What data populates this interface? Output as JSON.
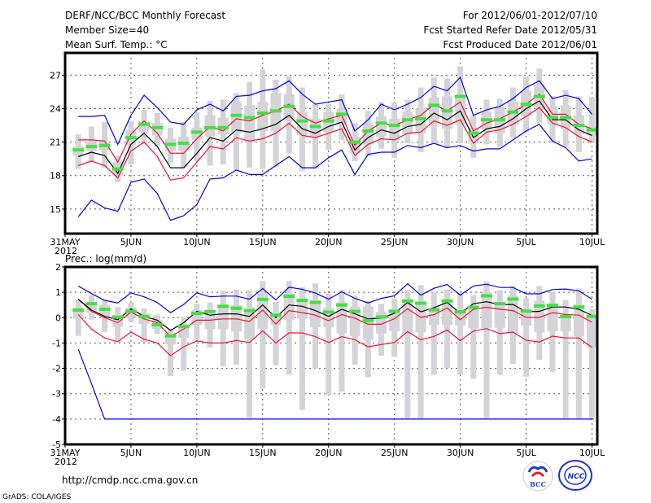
{
  "header": {
    "title": "DERF/NCC/BCC Monthly Forecast",
    "member_size": "Member Size=40",
    "variable": "Mean Surf. Temp.: °C",
    "period": "For 2012/06/01-2012/07/10",
    "started": "Fcst Started Refer Date 2012/05/31",
    "produced": "Fcst Produced Date 2012/06/01"
  },
  "footer": {
    "url": "http://cmdp.ncc.cma.gov.cn",
    "credit": "GrADS: COLA/IGES",
    "logo_bcc": "BCC",
    "logo_ncc": "NCC"
  },
  "colors": {
    "green": "#44e044",
    "black": "#000000",
    "red": "#ee1133",
    "blue": "#0000ee",
    "grey": "#d4d4d8"
  },
  "chart_data": [
    {
      "type": "line",
      "title": "Mean Surf. Temp.: °C",
      "ylim": [
        12.8,
        29
      ],
      "yticks": [
        15,
        18,
        21,
        24,
        27
      ],
      "xlim": [
        0,
        40.4
      ],
      "xticks": [
        {
          "day": 0,
          "label": "31MAY",
          "sub": "2012"
        },
        {
          "day": 5,
          "label": "5JUN"
        },
        {
          "day": 10,
          "label": "10JUN"
        },
        {
          "day": 15,
          "label": "15JUN"
        },
        {
          "day": 20,
          "label": "20JUN"
        },
        {
          "day": 25,
          "label": "25JUN"
        },
        {
          "day": 30,
          "label": "30JUN"
        },
        {
          "day": 35,
          "label": "5JUL"
        },
        {
          "day": 40,
          "label": "10JUL"
        }
      ],
      "grid": true,
      "green": [
        20.3,
        20.6,
        20.7,
        18.6,
        21.4,
        22.6,
        22.3,
        20.8,
        20.9,
        21.9,
        22.3,
        22.3,
        23.4,
        23.2,
        23.6,
        23.8,
        24.2,
        22.9,
        22.4,
        22.9,
        23.5,
        21.0,
        22.0,
        22.7,
        22.5,
        23.0,
        23.1,
        24.3,
        23.8,
        25.1,
        21.8,
        23.0,
        23.0,
        23.7,
        24.4,
        25.1,
        23.2,
        23.2,
        22.5,
        22.1
      ],
      "mean": [
        19.7,
        20.1,
        19.8,
        18.2,
        20.8,
        21.8,
        20.6,
        18.7,
        18.7,
        20.0,
        21.4,
        21.1,
        22.1,
        21.9,
        22.2,
        22.6,
        23.4,
        22.2,
        21.8,
        22.4,
        22.8,
        20.3,
        21.4,
        22.1,
        21.8,
        22.4,
        22.6,
        23.6,
        23.0,
        23.8,
        21.4,
        22.2,
        22.4,
        23.1,
        24.0,
        24.7,
        23.0,
        23.0,
        22.1,
        21.6
      ],
      "red_upper": [
        21.2,
        21.2,
        21.1,
        19.2,
        21.7,
        22.9,
        21.8,
        20.0,
        20.0,
        21.3,
        22.4,
        22.0,
        23.1,
        22.9,
        23.4,
        23.8,
        24.4,
        23.3,
        22.7,
        23.1,
        23.4,
        20.7,
        22.0,
        22.7,
        22.5,
        23.0,
        23.4,
        24.4,
        23.8,
        24.6,
        22.0,
        22.7,
        23.1,
        23.7,
        24.4,
        25.3,
        23.5,
        23.5,
        22.6,
        22.2
      ],
      "red_lower": [
        18.9,
        19.3,
        18.9,
        17.8,
        20.2,
        21.0,
        19.7,
        17.6,
        17.8,
        19.2,
        20.6,
        20.4,
        21.4,
        21.1,
        21.3,
        21.8,
        22.7,
        21.6,
        21.4,
        21.8,
        22.2,
        19.8,
        20.8,
        21.3,
        21.2,
        21.8,
        21.9,
        22.9,
        22.5,
        23.0,
        20.9,
        21.9,
        22.1,
        22.6,
        23.3,
        24.1,
        22.7,
        22.3,
        21.5,
        21.0
      ],
      "blue_upper": [
        23.3,
        23.3,
        23.4,
        20.8,
        23.4,
        25.2,
        24.1,
        22.8,
        22.6,
        23.9,
        24.4,
        23.8,
        25.1,
        25.2,
        25.6,
        25.8,
        26.5,
        25.3,
        24.4,
        24.6,
        24.8,
        22.0,
        23.0,
        24.4,
        23.9,
        24.4,
        25.0,
        26.0,
        25.6,
        26.8,
        23.4,
        23.9,
        24.2,
        24.9,
        25.9,
        26.5,
        24.9,
        25.2,
        24.9,
        23.5
      ],
      "blue_lower": [
        14.3,
        15.8,
        15.1,
        14.8,
        17.4,
        17.7,
        16.4,
        14.0,
        14.4,
        15.4,
        17.7,
        17.8,
        18.5,
        18.1,
        18.1,
        18.9,
        19.7,
        18.7,
        18.7,
        19.6,
        20.3,
        18.1,
        19.9,
        20.1,
        20.1,
        20.7,
        20.5,
        20.9,
        20.5,
        20.7,
        20.2,
        20.4,
        20.4,
        21.2,
        22.0,
        22.6,
        21.1,
        20.5,
        19.3,
        19.5
      ],
      "range_low": [
        18.6,
        19.2,
        18.7,
        17.4,
        19.0,
        20.8,
        20.6,
        19.1,
        18.7,
        19.3,
        18.9,
        19.0,
        18.5,
        18.7,
        18.6,
        18.8,
        20.0,
        18.4,
        18.6,
        20.3,
        21.2,
        19.3,
        19.7,
        20.4,
        19.6,
        20.9,
        20.1,
        21.0,
        20.5,
        20.9,
        19.6,
        20.8,
        20.6,
        21.4,
        21.9,
        22.7,
        20.9,
        20.6,
        20.1,
        20.9
      ],
      "range_high": [
        21.7,
        22.4,
        22.8,
        19.8,
        22.9,
        23.9,
        23.6,
        22.3,
        22.8,
        23.7,
        24.7,
        24.8,
        25.4,
        26.4,
        27.5,
        26.6,
        26.9,
        25.9,
        24.4,
        24.4,
        25.3,
        22.7,
        23.8,
        24.6,
        24.6,
        24.8,
        25.9,
        26.8,
        26.7,
        27.8,
        23.4,
        24.8,
        24.9,
        25.9,
        26.9,
        27.6,
        25.1,
        25.7,
        25.1,
        25.0
      ],
      "q_low": [
        19.8,
        20.2,
        20.3,
        18.0,
        20.7,
        21.9,
        21.6,
        20.2,
        20.2,
        21.2,
        21.5,
        21.7,
        21.8,
        21.0,
        22.0,
        22.0,
        22.9,
        21.6,
        21.5,
        21.9,
        22.6,
        20.0,
        20.8,
        21.5,
        21.2,
        21.7,
        21.8,
        22.6,
        22.2,
        22.6,
        20.9,
        22.1,
        21.8,
        22.6,
        23.3,
        24.0,
        22.6,
        22.2,
        21.7,
        21.6
      ],
      "q_high": [
        20.6,
        21.0,
        21.0,
        19.2,
        22.1,
        22.9,
        22.7,
        21.3,
        21.5,
        22.3,
        23.4,
        23.2,
        24.6,
        24.3,
        24.6,
        25.4,
        25.3,
        23.7,
        23.1,
        23.7,
        24.0,
        21.5,
        22.7,
        23.3,
        23.1,
        23.7,
        24.0,
        25.0,
        25.1,
        25.2,
        22.3,
        23.7,
        24.2,
        24.6,
        25.6,
        26.2,
        24.2,
        24.3,
        23.4,
        22.4
      ]
    },
    {
      "type": "line",
      "title": "Prec.: log(mm/d)",
      "ylim": [
        -5,
        2
      ],
      "yticks": [
        -5,
        -4,
        -3,
        -2,
        -1,
        0,
        1,
        2
      ],
      "xlim": [
        0,
        40.4
      ],
      "xticks": [
        {
          "day": 0,
          "label": "31MAY",
          "sub": "2012"
        },
        {
          "day": 5,
          "label": "5JUN"
        },
        {
          "day": 10,
          "label": "10JUN"
        },
        {
          "day": 15,
          "label": "15JUN"
        },
        {
          "day": 20,
          "label": "20JUN"
        },
        {
          "day": 25,
          "label": "25JUN"
        },
        {
          "day": 30,
          "label": "30JUN"
        },
        {
          "day": 35,
          "label": "5JUL"
        },
        {
          "day": 40,
          "label": "10JUL"
        }
      ],
      "grid": true,
      "green": [
        0.3,
        0.55,
        0.33,
        0.02,
        0.25,
        0.05,
        -0.28,
        -0.72,
        -0.35,
        0.17,
        0.24,
        0.45,
        0.37,
        0.27,
        0.72,
        0.1,
        0.84,
        0.68,
        0.6,
        0.22,
        0.5,
        0.25,
        -0.12,
        0.03,
        0.25,
        0.66,
        0.57,
        0.31,
        0.66,
        0.23,
        0.41,
        0.86,
        0.55,
        0.73,
        0.26,
        0.46,
        0.49,
        0.04,
        0.42,
        0.05
      ],
      "mean": [
        0.73,
        0.3,
        0.05,
        -0.08,
        0.35,
        0.05,
        -0.1,
        -0.5,
        -0.2,
        0.25,
        0.1,
        0.15,
        0.15,
        0.05,
        0.5,
        0.0,
        0.5,
        0.45,
        0.28,
        0.05,
        0.33,
        0.15,
        -0.05,
        -0.02,
        0.17,
        0.6,
        0.23,
        0.39,
        0.6,
        0.17,
        0.55,
        0.63,
        0.52,
        0.52,
        0.23,
        0.25,
        0.42,
        0.42,
        0.33,
        0.09
      ],
      "red_upper": [
        0.73,
        0.25,
        0.0,
        -0.2,
        0.22,
        -0.05,
        -0.2,
        -0.75,
        -0.45,
        -0.1,
        -0.1,
        -0.05,
        -0.05,
        -0.15,
        0.3,
        -0.25,
        0.28,
        0.2,
        0.1,
        -0.12,
        0.12,
        -0.02,
        -0.26,
        -0.26,
        -0.04,
        0.35,
        0.01,
        0.12,
        0.38,
        -0.08,
        0.33,
        0.41,
        0.33,
        0.28,
        0.01,
        0.01,
        0.2,
        0.12,
        0.1,
        -0.18
      ],
      "red_lower": [
        0.12,
        -0.45,
        -0.8,
        -0.95,
        -0.57,
        -0.85,
        -1.0,
        -1.5,
        -1.15,
        -0.92,
        -1.0,
        -1.0,
        -0.9,
        -0.98,
        -0.52,
        -1.0,
        -0.6,
        -0.6,
        -0.75,
        -0.98,
        -0.75,
        -0.87,
        -1.15,
        -1.06,
        -0.98,
        -0.55,
        -0.87,
        -0.74,
        -0.49,
        -0.91,
        -0.53,
        -0.43,
        -0.63,
        -0.57,
        -0.89,
        -0.96,
        -0.73,
        -0.8,
        -0.8,
        -1.17
      ],
      "blue_upper": [
        1.25,
        0.95,
        0.68,
        0.58,
        0.98,
        0.82,
        0.6,
        0.2,
        0.52,
        0.98,
        0.82,
        0.85,
        0.85,
        0.73,
        1.15,
        0.7,
        1.2,
        1.12,
        0.97,
        0.73,
        1.02,
        0.76,
        0.58,
        0.76,
        0.86,
        1.34,
        0.89,
        1.16,
        1.31,
        0.89,
        1.25,
        1.32,
        1.19,
        1.19,
        0.94,
        0.94,
        1.11,
        1.13,
        1.06,
        0.73
      ],
      "blue_lower": [
        -1.25,
        -2.6,
        -4,
        -4,
        -4,
        -4,
        -4,
        -4,
        -4,
        -4,
        -4,
        -4,
        -4,
        -4,
        -4,
        -4,
        -4,
        -4,
        -4,
        -4,
        -4,
        -4,
        -4,
        -4,
        -4,
        -4,
        -4,
        -4,
        -4,
        -4,
        -4,
        -4,
        -4,
        -4,
        -4,
        -4,
        -4,
        -4,
        -4,
        -4
      ],
      "range_low": [
        -0.72,
        -0.08,
        -0.57,
        -0.97,
        -0.17,
        -0.97,
        -0.65,
        -2.3,
        -2.1,
        -0.88,
        -1.18,
        -1.92,
        -1.85,
        -3.95,
        -2.8,
        -1.88,
        -2.25,
        -3.65,
        -2.0,
        -3.05,
        -2.92,
        -1.85,
        -2.35,
        -1.5,
        -1.55,
        -3.97,
        -3.97,
        -2.25,
        -1.98,
        -2.25,
        -2.41,
        -3.97,
        -2.25,
        -1.82,
        -2.33,
        -1.66,
        -2.14,
        -3.97,
        -3.97,
        -3.97
      ],
      "range_high": [
        0.68,
        0.88,
        0.72,
        0.42,
        0.6,
        0.37,
        0.12,
        -0.45,
        0.03,
        0.55,
        0.6,
        1.07,
        1.1,
        1.07,
        1.45,
        0.62,
        1.45,
        1.2,
        1.35,
        0.95,
        1.1,
        0.87,
        0.65,
        0.55,
        0.76,
        1.09,
        1.28,
        1.0,
        1.12,
        1.0,
        0.89,
        1.43,
        1.09,
        1.26,
        0.78,
        1.25,
        1.01,
        0.69,
        1.15,
        0.33
      ],
      "q_low": [
        -0.05,
        0.2,
        0.0,
        -0.37,
        0.0,
        -0.25,
        -0.45,
        -1.05,
        -0.8,
        -0.28,
        -0.45,
        -0.45,
        -0.55,
        -0.85,
        -0.45,
        -0.3,
        -0.1,
        -0.05,
        -0.38,
        -0.38,
        -0.62,
        -0.72,
        -0.88,
        -0.63,
        -0.53,
        -0.63,
        -0.58,
        -0.29,
        -0.29,
        -0.31,
        -0.42,
        -0.4,
        -0.4,
        -0.63,
        -0.31,
        -0.58,
        -0.53,
        -0.53,
        -0.74,
        -1.17
      ],
      "q_high": [
        0.4,
        0.6,
        0.5,
        0.1,
        0.4,
        0.15,
        -0.1,
        -0.6,
        -0.25,
        0.3,
        0.3,
        0.5,
        0.5,
        0.4,
        0.95,
        0.2,
        0.95,
        0.7,
        0.7,
        0.4,
        0.6,
        0.44,
        0.44,
        0.23,
        0.33,
        0.66,
        0.55,
        0.39,
        0.66,
        0.33,
        0.44,
        1.03,
        0.6,
        0.87,
        0.28,
        0.66,
        0.55,
        0.06,
        0.49,
        0.01
      ]
    }
  ]
}
